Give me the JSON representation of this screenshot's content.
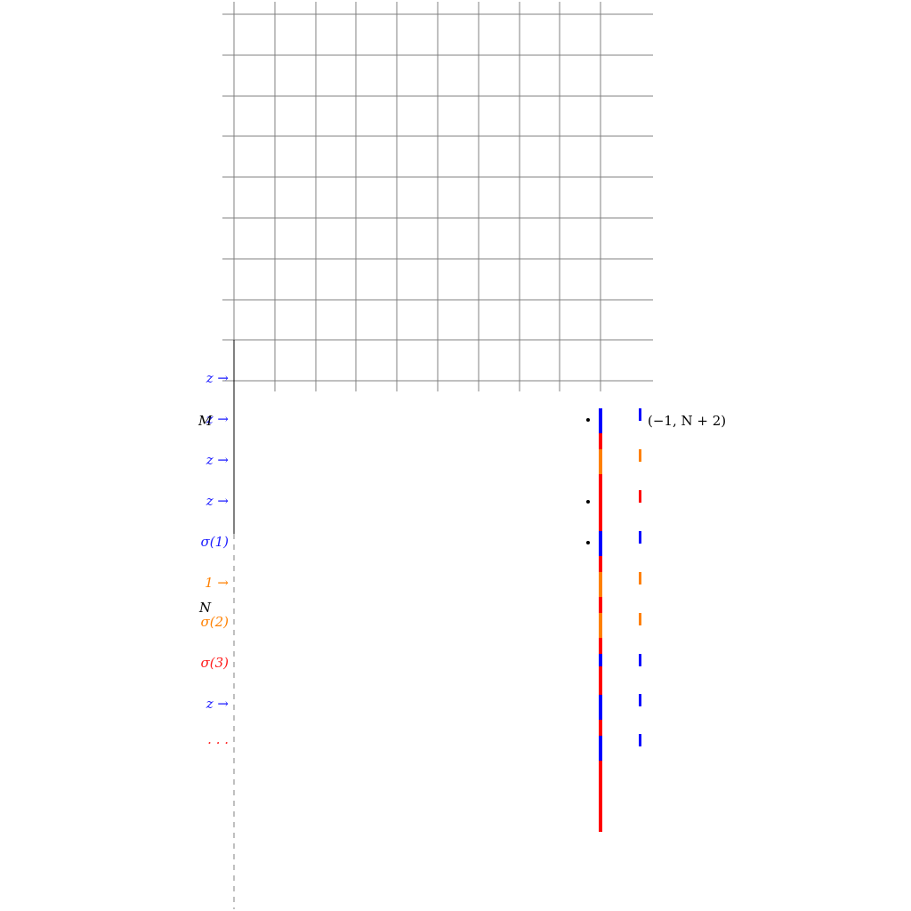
{
  "colors": {
    "blue": "#0000ff",
    "orange": "#ff8000",
    "red": "#ff0000",
    "grid": "#808080",
    "black": "#000000"
  },
  "axis_labels": {
    "m": "M",
    "n": "N"
  },
  "point_label": "(−1, N + 2)",
  "row_labels": [
    {
      "text": "z →",
      "color": "blue"
    },
    {
      "text": "z →",
      "color": "blue"
    },
    {
      "text": "z →",
      "color": "blue"
    },
    {
      "text": "z →",
      "color": "blue"
    },
    {
      "text": "σ(1)",
      "color": "blue"
    },
    {
      "text": "1 →",
      "color": "orange"
    },
    {
      "text": "σ(2)",
      "color": "orange"
    },
    {
      "text": "σ(3)",
      "color": "red"
    },
    {
      "text": "z →",
      "color": "blue"
    },
    {
      "text": "· · ·",
      "color": "red"
    }
  ],
  "main_column_segments": [
    "blue",
    "red",
    "orange",
    "red",
    "red",
    "blue",
    "red",
    "orange",
    "red",
    "orange",
    "red",
    "blue",
    "red",
    "blue",
    "red",
    "blue",
    "red",
    "red"
  ],
  "right_ticks": [
    "blue",
    "orange",
    "red",
    "blue",
    "orange",
    "orange",
    "blue",
    "blue",
    "blue"
  ],
  "dots_rows": [
    0,
    2,
    3
  ]
}
